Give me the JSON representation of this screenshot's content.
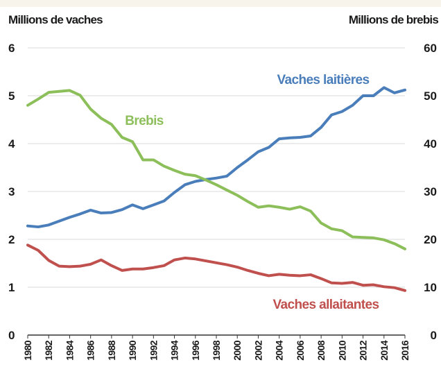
{
  "chart_data": {
    "type": "line",
    "y_label": "Millions de vaches",
    "y2_label": "Millions de brebis",
    "x": [
      1980,
      1981,
      1982,
      1983,
      1984,
      1985,
      1986,
      1987,
      1988,
      1989,
      1990,
      1991,
      1992,
      1993,
      1994,
      1995,
      1996,
      1997,
      1998,
      1999,
      2000,
      2001,
      2002,
      2003,
      2004,
      2005,
      2006,
      2007,
      2008,
      2009,
      2010,
      2011,
      2012,
      2013,
      2014,
      2015,
      2016
    ],
    "xlim": [
      1980,
      2016
    ],
    "xticks": [
      1980,
      1982,
      1984,
      1986,
      1988,
      1990,
      1992,
      1994,
      1996,
      1998,
      2000,
      2002,
      2004,
      2006,
      2008,
      2010,
      2012,
      2014,
      2016
    ],
    "ylim": [
      0,
      6
    ],
    "yticks": [
      0,
      1,
      2,
      3,
      4,
      5,
      6
    ],
    "y2lim": [
      0,
      60
    ],
    "y2ticks": [
      0,
      10,
      20,
      30,
      40,
      50,
      60
    ],
    "grid": true,
    "series": [
      {
        "name": "Vaches laitières",
        "color": "#4a7ebb",
        "values": [
          2.28,
          2.26,
          2.3,
          2.38,
          2.46,
          2.53,
          2.61,
          2.55,
          2.56,
          2.62,
          2.72,
          2.64,
          2.72,
          2.8,
          2.98,
          3.14,
          3.21,
          3.25,
          3.28,
          3.32,
          3.5,
          3.66,
          3.83,
          3.92,
          4.1,
          4.12,
          4.13,
          4.16,
          4.34,
          4.6,
          4.67,
          4.8,
          5.0,
          5.0,
          5.17,
          5.06,
          5.12
        ]
      },
      {
        "name": "Brebis",
        "color": "#8cbf5a",
        "axis": "y2",
        "values": [
          48,
          49.3,
          50.7,
          50.9,
          51.1,
          50.1,
          47.2,
          45.3,
          44,
          41.3,
          40.4,
          36.6,
          36.6,
          35.3,
          34.4,
          33.6,
          33.3,
          32.4,
          31.4,
          30.3,
          29.2,
          27.9,
          26.7,
          27,
          26.7,
          26.3,
          26.8,
          25.9,
          23.4,
          22.2,
          21.8,
          20.5,
          20.4,
          20.3,
          19.9,
          19.1,
          18
        ]
      },
      {
        "name": "Vaches allaitantes",
        "color": "#c0504d",
        "values": [
          1.88,
          1.77,
          1.56,
          1.44,
          1.43,
          1.44,
          1.48,
          1.57,
          1.45,
          1.35,
          1.38,
          1.38,
          1.41,
          1.45,
          1.57,
          1.61,
          1.59,
          1.55,
          1.51,
          1.47,
          1.42,
          1.35,
          1.29,
          1.24,
          1.27,
          1.25,
          1.24,
          1.26,
          1.18,
          1.09,
          1.08,
          1.1,
          1.04,
          1.05,
          1.01,
          0.99,
          0.93
        ]
      }
    ]
  }
}
